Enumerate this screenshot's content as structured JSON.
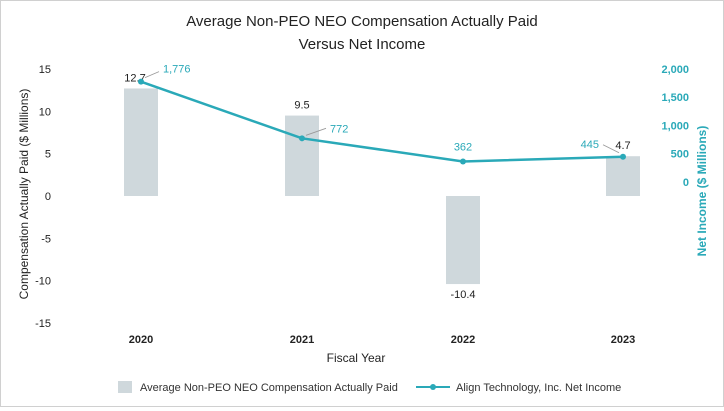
{
  "chart_data": {
    "type": "bar",
    "title": "Average Non-PEO NEO Compensation Actually Paid",
    "subtitle": "Versus Net Income",
    "xlabel": "Fiscal Year",
    "ylabel": "Compensation Actually Paid ($ Millions)",
    "y2label": "Net Income ($ Millions)",
    "categories": [
      "2020",
      "2021",
      "2022",
      "2023"
    ],
    "ylim": [
      -15,
      15
    ],
    "yticks": [
      "15",
      "10",
      "5",
      "0",
      "-5",
      "-10",
      "-15"
    ],
    "ytick_values": [
      15,
      10,
      5,
      0,
      -5,
      -10,
      -15
    ],
    "y2lim": [
      -2500,
      2000
    ],
    "y2ticks": [
      "2,000",
      "1,500",
      "1,000",
      "500",
      "0"
    ],
    "y2tick_values": [
      2000,
      1500,
      1000,
      500,
      0
    ],
    "grid": false,
    "legend_position": "bottom",
    "series": [
      {
        "name": "Average Non-PEO NEO Compensation Actually Paid",
        "kind": "bar",
        "axis": "left",
        "color": "#cfd8dc",
        "values": [
          12.7,
          9.5,
          -10.4,
          4.7
        ],
        "labels": [
          "12.7",
          "9.5",
          "-10.4",
          "4.7"
        ]
      },
      {
        "name": "Align Technology, Inc. Net Income",
        "kind": "line",
        "axis": "right",
        "color": "#2aa9b8",
        "values": [
          1776,
          772,
          362,
          445
        ],
        "labels": [
          "1,776",
          "772",
          "362",
          "445"
        ]
      }
    ]
  }
}
